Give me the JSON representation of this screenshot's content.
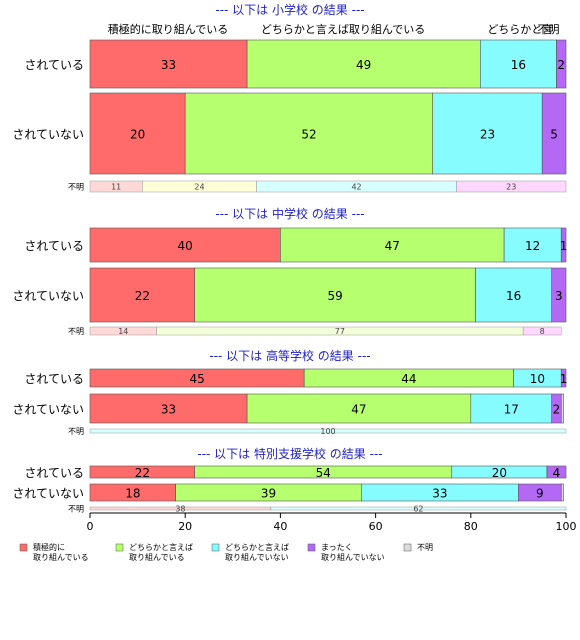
{
  "chart_data": {
    "type": "bar",
    "orientation": "horizontal",
    "stacked": true,
    "xlim": [
      0,
      100
    ],
    "x_ticks": [
      0,
      20,
      40,
      60,
      80,
      100
    ],
    "grid": false,
    "legend_placement": "bottom-left",
    "series": [
      {
        "name": "積極的に\n取り組んでいる",
        "color": "#ff6b6b"
      },
      {
        "name": "どちらかと言えば\n取り組んでいる",
        "color": "#b6ff6e"
      },
      {
        "name": "どちらかと言えば\n取り組んでいない",
        "color": "#87fcff"
      },
      {
        "name": "まったく\n取り組んでいない",
        "color": "#b469f5"
      },
      {
        "name": "不明",
        "color": "#dcdcdc"
      }
    ],
    "top_labels": [
      "積極的に取り組んでいる",
      "どちらかと言えば取り組んでいる",
      "どちらかと言",
      "不明"
    ],
    "unknown_label": "不明",
    "groups": [
      {
        "title": "--- 以下は 小学校 の結果 ---",
        "rows": [
          {
            "label": "されている",
            "values": [
              33,
              49,
              16,
              2,
              0.5
            ]
          },
          {
            "label": "されていない",
            "values": [
              20,
              52,
              23,
              5,
              0.5
            ]
          }
        ],
        "unknown": {
          "values": [
            11,
            24,
            42,
            23
          ],
          "colors": [
            "#ffd8d8",
            "#ffffd8",
            "#d8ffff",
            "#ffd8ff"
          ]
        }
      },
      {
        "title": "--- 以下は 中学校 の結果 ---",
        "rows": [
          {
            "label": "されている",
            "values": [
              40,
              47,
              12,
              1,
              1
            ]
          },
          {
            "label": "されていない",
            "values": [
              22,
              59,
              16,
              3,
              0.5
            ]
          }
        ],
        "unknown": {
          "values": [
            14,
            77,
            8
          ],
          "colors": [
            "#ffd8d8",
            "#f2ffd8",
            "#ffd8ff"
          ]
        }
      },
      {
        "title": "--- 以下は 高等学校 の結果 ---",
        "rows": [
          {
            "label": "されている",
            "values": [
              45,
              44,
              10,
              1,
              0.2
            ]
          },
          {
            "label": "されていない",
            "values": [
              33,
              47,
              17,
              2,
              0.5
            ]
          }
        ],
        "unknown": {
          "values": [
            100
          ],
          "colors": [
            "#d8ffff"
          ]
        }
      },
      {
        "title": "--- 以下は 特別支援学校 の結果 ---",
        "rows": [
          {
            "label": "されている",
            "values": [
              22,
              54,
              20,
              4,
              0.2
            ]
          },
          {
            "label": "されていない",
            "values": [
              18,
              39,
              33,
              9,
              0.5
            ]
          }
        ],
        "unknown": {
          "values": [
            38,
            62
          ],
          "colors": [
            "#ffd8d8",
            "#d8ffff"
          ]
        }
      }
    ]
  }
}
